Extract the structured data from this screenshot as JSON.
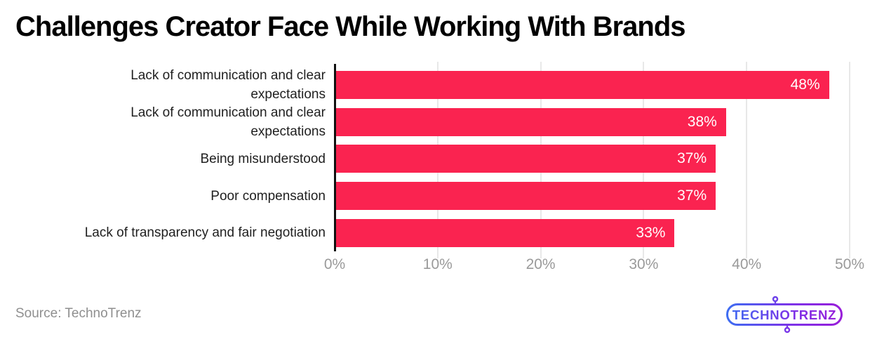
{
  "chart_data": {
    "type": "bar",
    "orientation": "horizontal",
    "title": "Challenges Creator Face While Working With Brands",
    "categories": [
      "Lack of communication and clear expectations",
      "Lack of communication and clear expectations",
      "Being misunderstood",
      "Poor compensation",
      "Lack of transparency and fair negotiation"
    ],
    "display_labels": [
      "Lack of communication and clear\nexpectations",
      "Lack of communication and clear\nexpectations",
      "Being misunderstood",
      "Poor compensation",
      "Lack of transparency and fair negotiation"
    ],
    "values": [
      48,
      38,
      37,
      37,
      33
    ],
    "value_labels": [
      "48%",
      "38%",
      "37%",
      "37%",
      "33%"
    ],
    "x_ticks": [
      "0%",
      "10%",
      "20%",
      "30%",
      "40%",
      "50%"
    ],
    "xlim": [
      0,
      50
    ],
    "xlabel": "",
    "ylabel": "",
    "grid": "vertical",
    "legend": "none",
    "bar_color": "#fa2350",
    "value_label_color": "#ffffff",
    "axis_line_color": "#111111",
    "gridline_color": "#e8e8e8",
    "tick_label_color": "#9a9a9a",
    "category_label_color": "#1f1f1f",
    "title_color": "#000000"
  },
  "footer": {
    "source_label": "Source: TechnoTrenz",
    "logo_text": "TECHNOTRENZ",
    "source_color": "#8f8f8f",
    "logo_gradient_start": "#3a6ff2",
    "logo_gradient_mid": "#7c33e8",
    "logo_gradient_end": "#9a1bd8"
  }
}
